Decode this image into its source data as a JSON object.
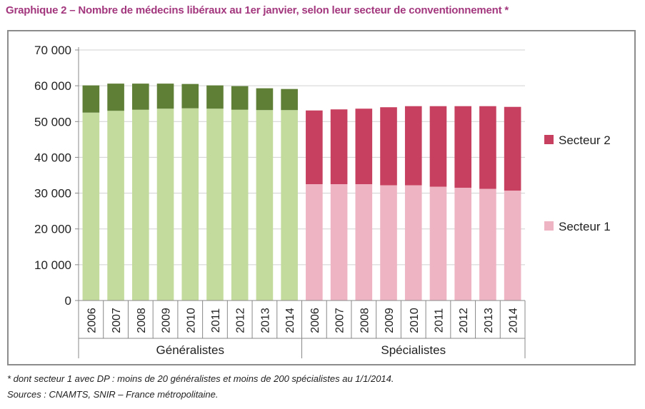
{
  "title": "Graphique 2 – Nombre de médecins libéraux au 1er janvier, selon leur secteur de conventionnement *",
  "footnote": "* dont secteur 1 avec DP : moins de 20 généralistes et moins de 200 spécialistes au 1/1/2014.",
  "sources": "Sources : CNAMTS, SNIR – France métropolitaine.",
  "chart_data": {
    "type": "bar",
    "stacked": true,
    "ylim": [
      0,
      70000
    ],
    "yticks": [
      0,
      10000,
      20000,
      30000,
      40000,
      50000,
      60000,
      70000
    ],
    "ytick_labels": [
      "0",
      "10 000",
      "20 000",
      "30 000",
      "40 000",
      "50 000",
      "60 000",
      "70 000"
    ],
    "grid": true,
    "legend_position": "right",
    "legend": [
      {
        "label": "Secteur 2",
        "color": "#c8405f"
      },
      {
        "label": "Secteur 1",
        "color": "#efb4c3"
      }
    ],
    "groups": [
      {
        "name": "Généralistes",
        "categories": [
          "2006",
          "2007",
          "2008",
          "2009",
          "2010",
          "2011",
          "2012",
          "2013",
          "2014"
        ],
        "colors": {
          "secteur1": "#c3dc9d",
          "secteur2": "#5f7e36"
        },
        "secteur1": [
          52500,
          53000,
          53300,
          53600,
          53700,
          53600,
          53300,
          53200,
          53200
        ],
        "secteur2": [
          7600,
          7600,
          7300,
          7000,
          6800,
          6500,
          6600,
          6100,
          5900
        ]
      },
      {
        "name": "Spécialistes",
        "categories": [
          "2006",
          "2007",
          "2008",
          "2009",
          "2010",
          "2011",
          "2012",
          "2013",
          "2014"
        ],
        "colors": {
          "secteur1": "#efb4c3",
          "secteur2": "#c8405f"
        },
        "secteur1": [
          32500,
          32500,
          32500,
          32200,
          32200,
          31800,
          31500,
          31200,
          30700
        ],
        "secteur2": [
          20600,
          20900,
          21100,
          21800,
          22100,
          22500,
          22800,
          23100,
          23400
        ]
      }
    ]
  }
}
